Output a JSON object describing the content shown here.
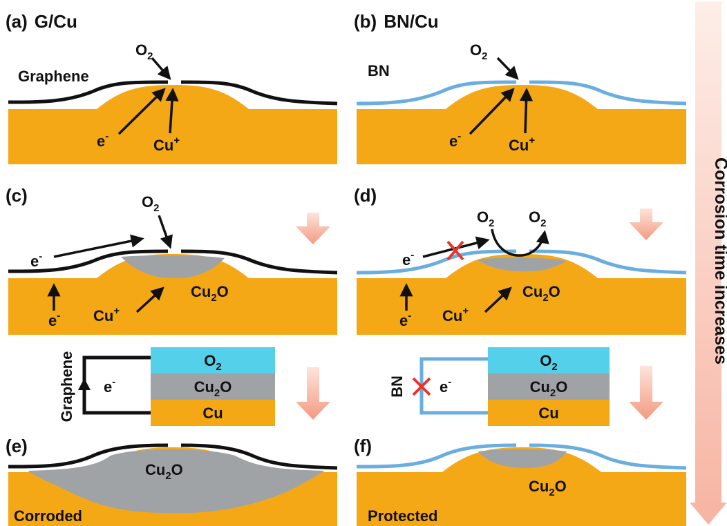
{
  "colors": {
    "copper": "#f5a816",
    "oxide": "#a0a3a5",
    "oxygen": "#54d0ea",
    "graphene": "#111111",
    "bn": "#6aaee0",
    "cross": "#e8342a",
    "arrow_light": "#fcdcd2",
    "arrow_dark": "#f08c72"
  },
  "panels": {
    "a": {
      "tag": "(a)",
      "title": "G/Cu",
      "film": "Graphene",
      "o2": "O",
      "o2_sub": "2",
      "e": "e",
      "e_sup": "-",
      "cu": "Cu",
      "cu_sup": "+"
    },
    "b": {
      "tag": "(b)",
      "title": "BN/Cu",
      "film": "BN",
      "o2": "O",
      "o2_sub": "2",
      "e": "e",
      "e_sup": "-",
      "cu": "Cu",
      "cu_sup": "+"
    },
    "c": {
      "tag": "(c)",
      "o2": "O",
      "o2_sub": "2",
      "e1": "e",
      "e1_sup": "-",
      "e2": "e",
      "e2_sup": "-",
      "cu": "Cu",
      "cu_sup": "+",
      "oxide": "Cu",
      "oxide_sub": "2",
      "oxide_tail": "O"
    },
    "d": {
      "tag": "(d)",
      "o2a": "O",
      "o2a_sub": "2",
      "o2b": "O",
      "o2b_sub": "2",
      "e1": "e",
      "e1_sup": "-",
      "e2": "e",
      "e2_sup": "-",
      "cu": "Cu",
      "cu_sup": "+",
      "oxide": "Cu",
      "oxide_sub": "2",
      "oxide_tail": "O"
    },
    "e": {
      "tag": "(e)",
      "oxide": "Cu",
      "oxide_sub": "2",
      "oxide_tail": "O",
      "status": "Corroded"
    },
    "f": {
      "tag": "(f)",
      "oxide": "Cu",
      "oxide_sub": "2",
      "oxide_tail": "O",
      "status": "Protected"
    }
  },
  "circuits": {
    "left": {
      "wire": "Graphene",
      "e": "e",
      "e_sup": "-",
      "layer_top": "O",
      "layer_top_sub": "2",
      "layer_mid": "Cu",
      "layer_mid_sub": "2",
      "layer_mid_tail": "O",
      "layer_bot": "Cu"
    },
    "right": {
      "wire": "BN",
      "e": "e",
      "e_sup": "-",
      "layer_top": "O",
      "layer_top_sub": "2",
      "layer_mid": "Cu",
      "layer_mid_sub": "2",
      "layer_mid_tail": "O",
      "layer_bot": "Cu"
    }
  },
  "timeline": {
    "label": "Corrosion time increases"
  }
}
